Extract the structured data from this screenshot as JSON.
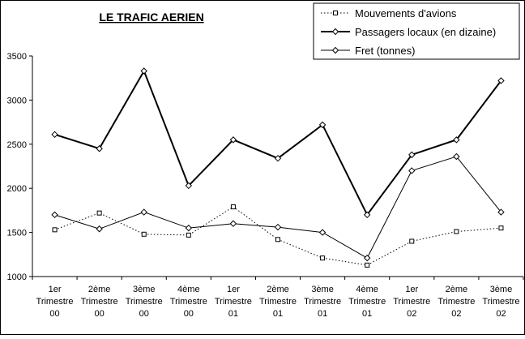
{
  "chart_data": {
    "type": "line",
    "title": "LE TRAFIC AERIEN",
    "categories": [
      [
        "1er",
        "Trimestre",
        "00"
      ],
      [
        "2ème",
        "Trimestre",
        "00"
      ],
      [
        "3ème",
        "Trimestre",
        "00"
      ],
      [
        "4ème",
        "Trimestre",
        "00"
      ],
      [
        "1er",
        "Trimestre",
        "01"
      ],
      [
        "2ème",
        "Trimestre",
        "01"
      ],
      [
        "3ème",
        "Trimestre",
        "01"
      ],
      [
        "4ème",
        "Trimestre",
        "01"
      ],
      [
        "1er",
        "Trimestre",
        "02"
      ],
      [
        "2ème",
        "Trimestre",
        "02"
      ],
      [
        "3ème",
        "Trimestre",
        "02"
      ]
    ],
    "ylim": [
      1000,
      3500
    ],
    "yticks": [
      1000,
      1500,
      2000,
      2500,
      3000,
      3500
    ],
    "grid": false,
    "legend_position": "top-right",
    "series": [
      {
        "name": "Mouvements d'avions",
        "style": "dotted",
        "marker": "square",
        "color": "#000000",
        "values": [
          1530,
          1720,
          1480,
          1470,
          1790,
          1420,
          1210,
          1130,
          1400,
          1510,
          1550
        ]
      },
      {
        "name": "Passagers locaux (en dizaine)",
        "style": "solid-thick",
        "marker": "diamond",
        "color": "#000000",
        "values": [
          2610,
          2450,
          3330,
          2030,
          2550,
          2340,
          2720,
          1700,
          2380,
          2550,
          3220
        ]
      },
      {
        "name": "Fret (tonnes)",
        "style": "solid-thin",
        "marker": "diamond",
        "color": "#000000",
        "values": [
          1700,
          1540,
          1730,
          1550,
          1600,
          1560,
          1500,
          1210,
          2200,
          2360,
          1730
        ]
      }
    ]
  }
}
